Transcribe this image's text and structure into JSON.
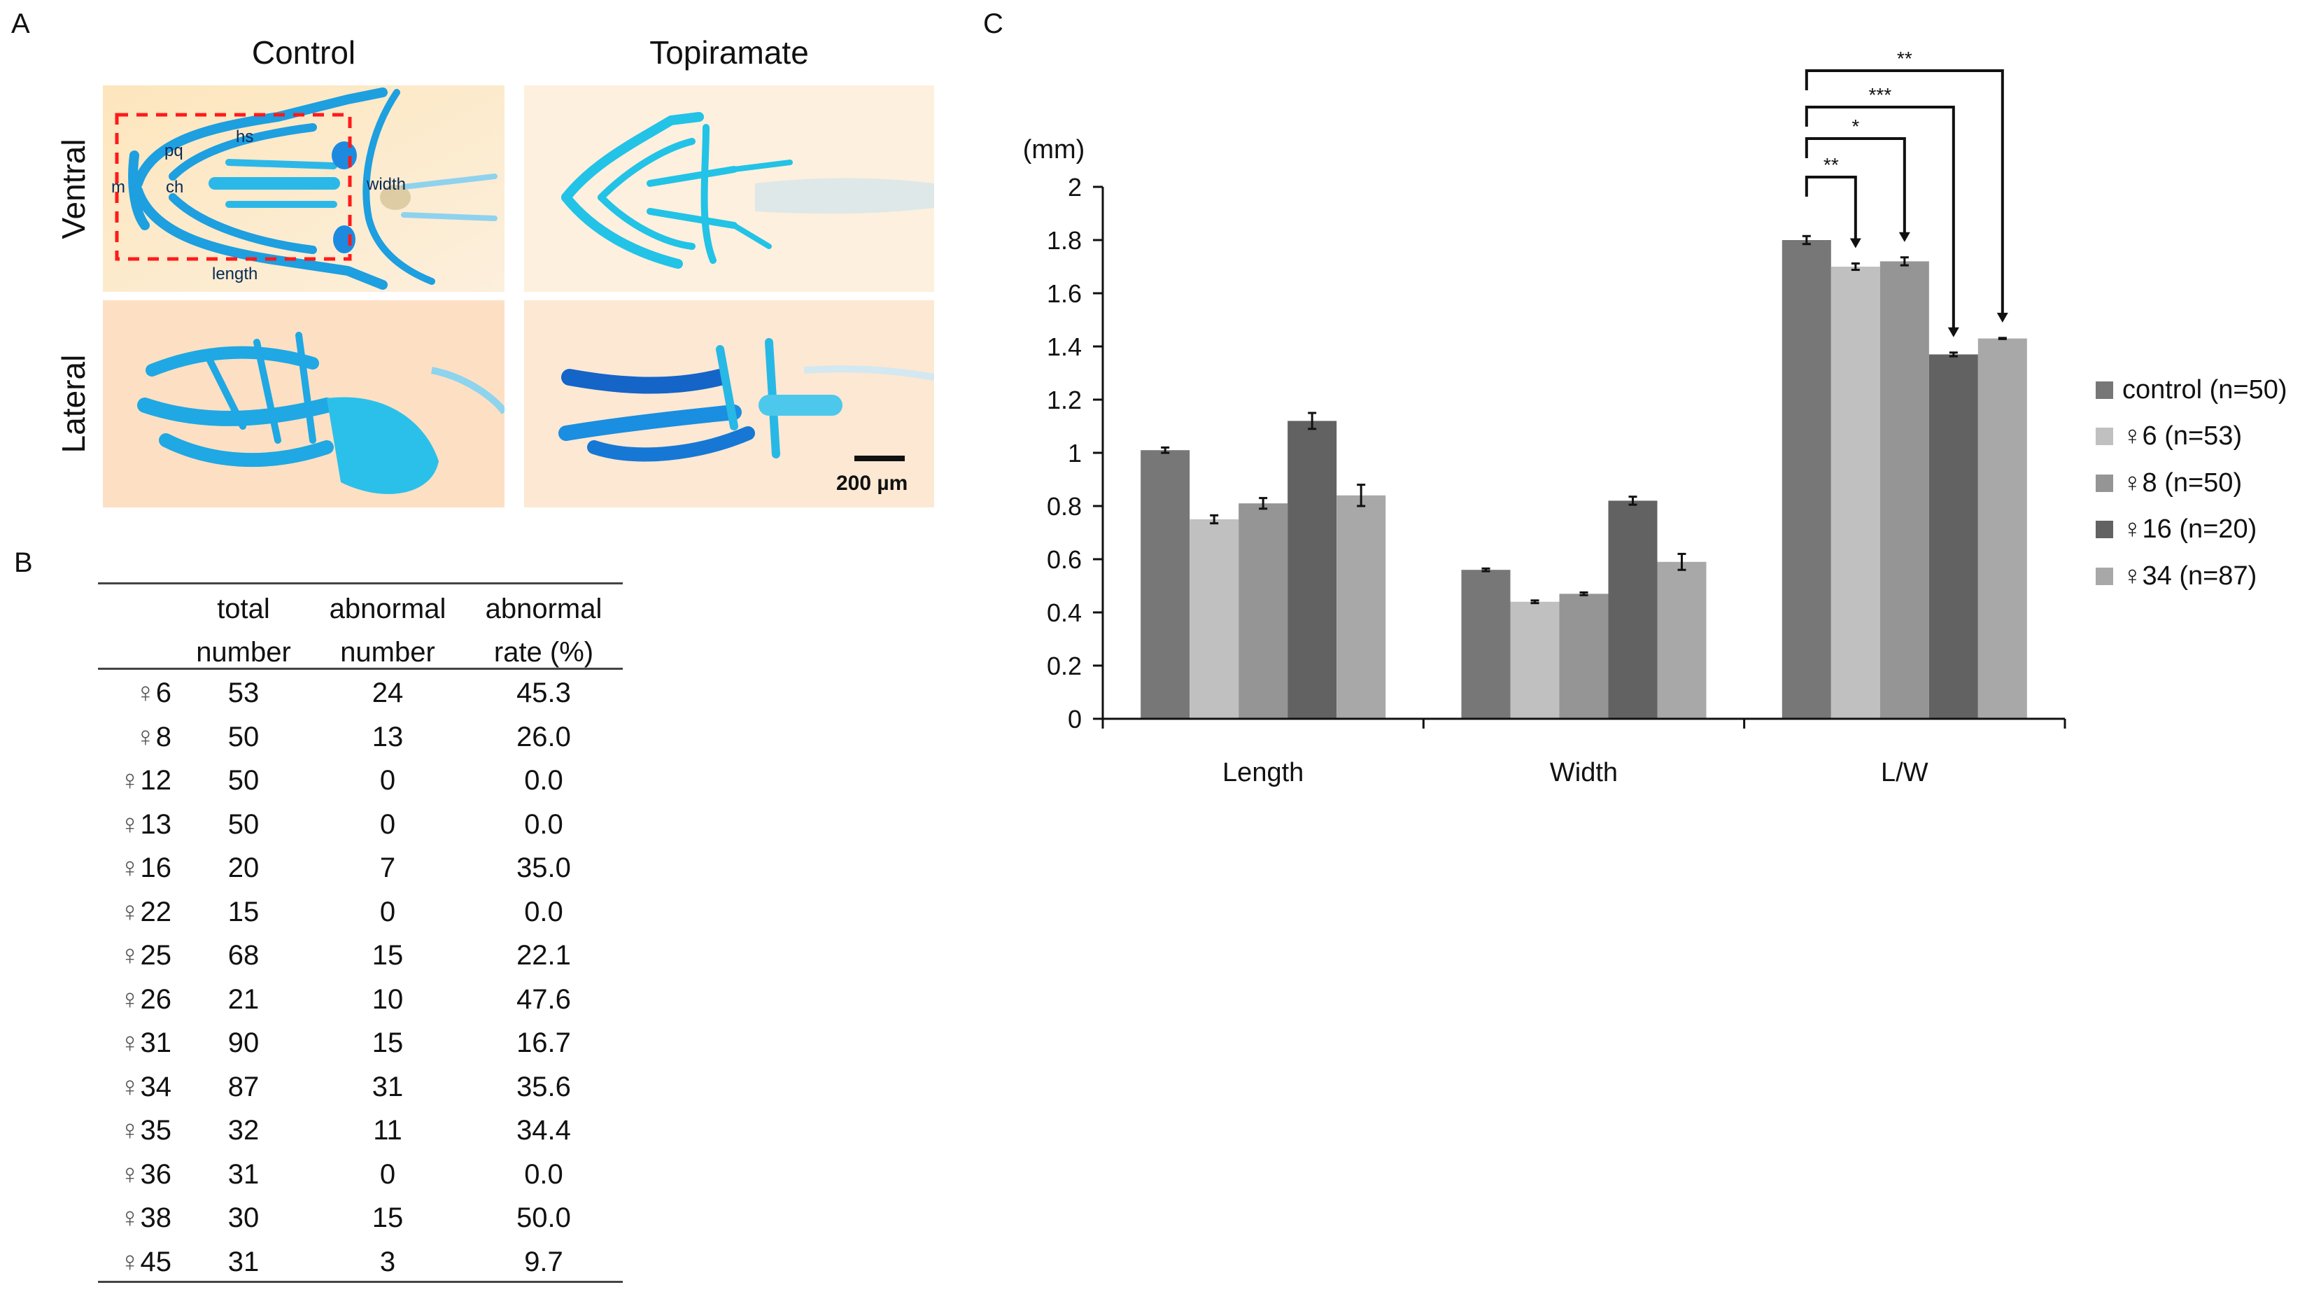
{
  "panel_a": {
    "letter": "A",
    "columns": [
      "Control",
      "Topiramate"
    ],
    "rows": [
      "Ventral",
      "Lateral"
    ],
    "annotations": {
      "m": "m",
      "pq": "pq",
      "ch": "ch",
      "hs": "hs",
      "width": "width",
      "length": "length"
    },
    "scale_bar_label": "200 µm",
    "colors": {
      "stain": "#19b8e0",
      "stain_dark": "#1e6fcf",
      "background": "#fbe7c6",
      "box": "#ff1a1a"
    }
  },
  "panel_b": {
    "letter": "B",
    "headers": [
      {
        "line1": "",
        "line2": ""
      },
      {
        "line1": "total",
        "line2": "number"
      },
      {
        "line1": "abnormal",
        "line2": "number"
      },
      {
        "line1": "abnormal",
        "line2": "rate (%)"
      }
    ],
    "female_symbol": "♀",
    "rows": [
      {
        "id": "6",
        "total": "53",
        "abnormal": "24",
        "rate": "45.3"
      },
      {
        "id": "8",
        "total": "50",
        "abnormal": "13",
        "rate": "26.0"
      },
      {
        "id": "12",
        "total": "50",
        "abnormal": "0",
        "rate": "0.0"
      },
      {
        "id": "13",
        "total": "50",
        "abnormal": "0",
        "rate": "0.0"
      },
      {
        "id": "16",
        "total": "20",
        "abnormal": "7",
        "rate": "35.0"
      },
      {
        "id": "22",
        "total": "15",
        "abnormal": "0",
        "rate": "0.0"
      },
      {
        "id": "25",
        "total": "68",
        "abnormal": "15",
        "rate": "22.1"
      },
      {
        "id": "26",
        "total": "21",
        "abnormal": "10",
        "rate": "47.6"
      },
      {
        "id": "31",
        "total": "90",
        "abnormal": "15",
        "rate": "16.7"
      },
      {
        "id": "34",
        "total": "87",
        "abnormal": "31",
        "rate": "35.6"
      },
      {
        "id": "35",
        "total": "32",
        "abnormal": "11",
        "rate": "34.4"
      },
      {
        "id": "36",
        "total": "31",
        "abnormal": "0",
        "rate": "0.0"
      },
      {
        "id": "38",
        "total": "30",
        "abnormal": "15",
        "rate": "50.0"
      },
      {
        "id": "45",
        "total": "31",
        "abnormal": "3",
        "rate": "9.7"
      }
    ]
  },
  "panel_c": {
    "letter": "C"
  },
  "chart_data": {
    "type": "bar",
    "title": "",
    "xlabel": "",
    "ylabel": "(mm)",
    "ylim": [
      0,
      2
    ],
    "yticks": [
      0,
      0.2,
      0.4,
      0.6,
      0.8,
      1,
      1.2,
      1.4,
      1.6,
      1.8,
      2
    ],
    "ytick_labels": [
      "0",
      "0.2",
      "0.4",
      "0.6",
      "0.8",
      "1",
      "1.2",
      "1.4",
      "1.6",
      "1.8",
      "2"
    ],
    "categories": [
      "Length",
      "Width",
      "L/W"
    ],
    "grid": false,
    "legend_position": "right",
    "series": [
      {
        "name": "control (n=50)",
        "label_prefix": "",
        "label_main": "control (n=50)",
        "color": "#777777",
        "values": [
          1.01,
          0.56,
          1.8
        ],
        "errors": [
          0.01,
          0.005,
          0.015
        ]
      },
      {
        "name": "♀6 (n=53)",
        "label_prefix": "♀",
        "label_main": "6 (n=53)",
        "color": "#c0c0c0",
        "values": [
          0.75,
          0.44,
          1.7
        ],
        "errors": [
          0.015,
          0.005,
          0.012
        ]
      },
      {
        "name": "♀8 (n=50)",
        "label_prefix": "♀",
        "label_main": "8 (n=50)",
        "color": "#959595",
        "values": [
          0.81,
          0.47,
          1.72
        ],
        "errors": [
          0.02,
          0.005,
          0.015
        ]
      },
      {
        "name": "♀16 (n=20)",
        "label_prefix": "♀",
        "label_main": "16 (n=20)",
        "color": "#626262",
        "values": [
          1.12,
          0.82,
          1.37
        ],
        "errors": [
          0.03,
          0.015,
          0.007
        ]
      },
      {
        "name": "♀34 (n=87)",
        "label_prefix": "♀",
        "label_main": "34 (n=87)",
        "color": "#a8a8a8",
        "values": [
          0.84,
          0.59,
          1.43
        ],
        "errors": [
          0.04,
          0.03,
          0.002
        ]
      }
    ],
    "significance": [
      {
        "category": "L/W",
        "from": 0,
        "to": 1,
        "label": "**"
      },
      {
        "category": "L/W",
        "from": 0,
        "to": 2,
        "label": "*"
      },
      {
        "category": "L/W",
        "from": 0,
        "to": 3,
        "label": "***"
      },
      {
        "category": "L/W",
        "from": 0,
        "to": 4,
        "label": "**"
      }
    ]
  }
}
